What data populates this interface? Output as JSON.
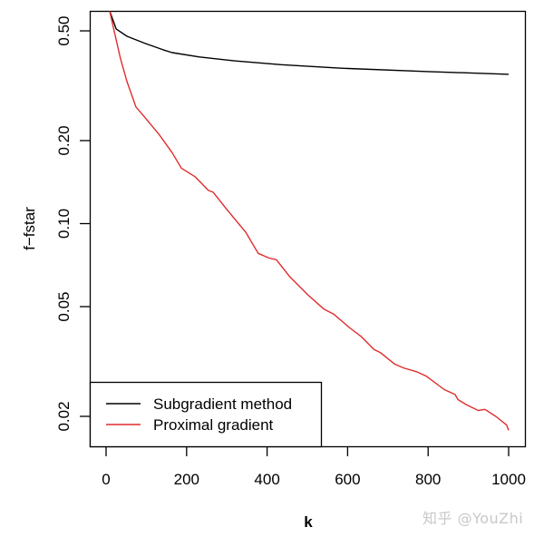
{
  "chart_data": {
    "type": "line",
    "title": "",
    "xlabel": "k",
    "ylabel": "f−fstar",
    "yscale": "log",
    "xlim": [
      0,
      1000
    ],
    "ylim": [
      0.0165,
      0.59
    ],
    "x_ticks": [
      0,
      200,
      400,
      600,
      800,
      1000
    ],
    "x_tick_labels": [
      "0",
      "200",
      "400",
      "600",
      "800",
      "1000"
    ],
    "y_ticks": [
      0.5,
      0.2,
      0.1,
      0.05,
      0.02
    ],
    "y_tick_labels": [
      "0.50",
      "0.20",
      "0.10",
      "0.05",
      "0.02"
    ],
    "grid": false,
    "legend_position": "bottom-left",
    "series": [
      {
        "name": "Subgradient method",
        "color": "#000000",
        "x": [
          9,
          25,
          52,
          97,
          142,
          164,
          232,
          322,
          435,
          584,
          800,
          1000
        ],
        "values": [
          0.59,
          0.508,
          0.478,
          0.45,
          0.427,
          0.417,
          0.402,
          0.389,
          0.377,
          0.366,
          0.356,
          0.348
        ]
      },
      {
        "name": "Proximal gradient",
        "color": "#df2c2c",
        "x": [
          9,
          18,
          36,
          52,
          74,
          97,
          131,
          164,
          187,
          221,
          254,
          266,
          299,
          347,
          378,
          405,
          423,
          457,
          502,
          541,
          565,
          604,
          633,
          665,
          682,
          716,
          738,
          772,
          795,
          840,
          867,
          874,
          896,
          925,
          941,
          968,
          995,
          1000
        ],
        "values": [
          0.59,
          0.515,
          0.395,
          0.327,
          0.265,
          0.242,
          0.211,
          0.181,
          0.159,
          0.148,
          0.132,
          0.13,
          0.113,
          0.093,
          0.078,
          0.075,
          0.074,
          0.064,
          0.055,
          0.049,
          0.047,
          0.042,
          0.039,
          0.035,
          0.034,
          0.031,
          0.03,
          0.029,
          0.028,
          0.025,
          0.024,
          0.023,
          0.022,
          0.021,
          0.0212,
          0.02,
          0.0186,
          0.0178
        ]
      }
    ]
  },
  "legend": {
    "items": [
      {
        "label": "Subgradient method",
        "color": "#000000"
      },
      {
        "label": "Proximal gradient",
        "color": "#df2c2c"
      }
    ]
  },
  "watermark": "知乎 @YouZhi"
}
